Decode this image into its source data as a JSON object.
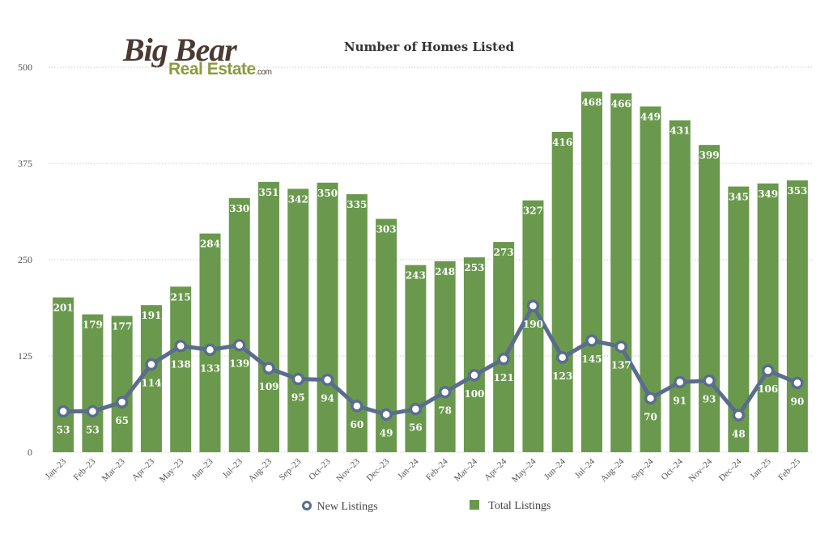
{
  "logo": {
    "big": "Big Bear",
    "real_estate": "Real Estate",
    "com": ".com"
  },
  "legend": {
    "new_label": "New Listings",
    "total_label": "Total Listings"
  },
  "colors": {
    "bar": "#6a994e",
    "line": "#5a6d8c",
    "bar_label": "#ffffff",
    "grid": "#cccccc",
    "axis_text": "#555555"
  },
  "chart_data": {
    "type": "bar",
    "title": "Number of Homes Listed",
    "xlabel": "",
    "ylabel": "",
    "ylim": [
      0,
      500
    ],
    "yticks": [
      0,
      125,
      250,
      375,
      500
    ],
    "grid": true,
    "legend_position": "bottom",
    "categories": [
      "Jan–23",
      "Feb–23",
      "Mar–23",
      "Apr–23",
      "May–23",
      "Jun–23",
      "Jul–23",
      "Aug–23",
      "Sep–23",
      "Oct–23",
      "Nov–23",
      "Dec–23",
      "Jan–24",
      "Feb–24",
      "Mar–24",
      "Apr–24",
      "May–24",
      "Jun–24",
      "Jul–24",
      "Aug–24",
      "Sep–24",
      "Oct–24",
      "Nov–24",
      "Dec–24",
      "Jan–25",
      "Feb–25"
    ],
    "series": [
      {
        "name": "Total Listings",
        "type": "bar",
        "values": [
          201,
          179,
          177,
          191,
          215,
          284,
          330,
          351,
          342,
          350,
          335,
          303,
          243,
          248,
          253,
          273,
          327,
          416,
          468,
          466,
          449,
          431,
          399,
          345,
          349,
          353
        ]
      },
      {
        "name": "New Listings",
        "type": "line",
        "values": [
          53,
          53,
          65,
          114,
          138,
          133,
          139,
          109,
          95,
          94,
          60,
          49,
          56,
          78,
          100,
          121,
          190,
          123,
          145,
          137,
          70,
          91,
          93,
          48,
          106,
          90
        ]
      }
    ]
  }
}
